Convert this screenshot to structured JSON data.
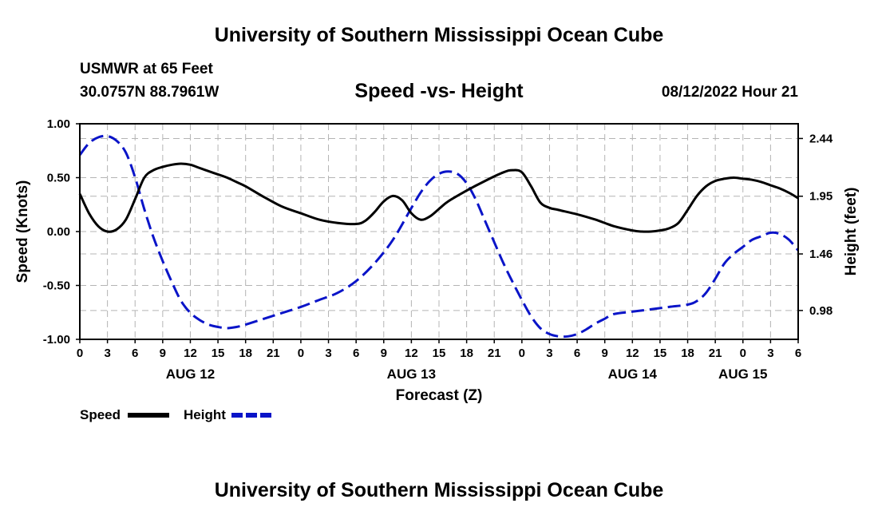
{
  "header": {
    "title": "University of Southern Mississippi Ocean Cube",
    "station_name": "USMWR at 65 Feet",
    "station_coords": "30.0757N  88.7961W",
    "subtitle": "Speed -vs- Height",
    "datetime": "08/12/2022 Hour 21"
  },
  "footer": {
    "title": "University of Southern Mississippi Ocean Cube"
  },
  "colors": {
    "speed": "#000000",
    "height": "#0a14c8",
    "grid": "#b4b4b4"
  },
  "chart_data": {
    "type": "line",
    "title": "Speed -vs- Height",
    "xlabel": "Forecast (Z)",
    "ylabel_left": "Speed (Knots)",
    "ylabel_right": "Height (feet)",
    "x_unit": "hours from AUG 12 00Z",
    "xlim": [
      0,
      78
    ],
    "ylim_left": [
      -1.0,
      1.0
    ],
    "ylim_right": [
      0.735,
      2.565
    ],
    "left_ticks": [
      "1.00",
      "0.50",
      "0.00",
      "-0.50",
      "-1.00"
    ],
    "right_ticks": [
      "2.44",
      "1.95",
      "1.46",
      "0.98"
    ],
    "x_ticks": [
      "0",
      "3",
      "6",
      "9",
      "12",
      "15",
      "18",
      "21",
      "0",
      "3",
      "6",
      "9",
      "12",
      "15",
      "18",
      "21",
      "0",
      "3",
      "6",
      "9",
      "12",
      "15",
      "18",
      "21",
      "0",
      "3",
      "6"
    ],
    "day_labels": [
      {
        "label": "AUG 12",
        "hour": 12
      },
      {
        "label": "AUG 13",
        "hour": 36
      },
      {
        "label": "AUG 14",
        "hour": 60
      },
      {
        "label": "AUG 15",
        "hour": 72
      }
    ],
    "legend": [
      "Speed",
      "Height"
    ],
    "series": [
      {
        "name": "Speed",
        "unit": "Knots",
        "x": [
          0,
          1,
          2,
          3,
          4,
          5,
          6,
          7,
          8,
          9,
          10,
          11,
          12,
          13,
          14,
          15,
          16,
          17,
          18,
          20,
          22,
          24,
          26,
          28,
          30,
          31,
          32,
          33,
          34,
          35,
          36,
          37,
          38,
          39,
          40,
          42,
          44,
          46,
          47,
          48,
          49,
          50,
          51,
          52,
          54,
          56,
          58,
          60,
          61,
          62,
          63,
          64,
          65,
          66,
          67,
          68,
          69,
          70,
          71,
          72,
          73,
          74,
          75,
          76,
          77,
          78
        ],
        "y": [
          0.35,
          0.17,
          0.05,
          0.0,
          0.02,
          0.11,
          0.3,
          0.5,
          0.57,
          0.6,
          0.62,
          0.63,
          0.62,
          0.59,
          0.56,
          0.53,
          0.5,
          0.46,
          0.42,
          0.32,
          0.23,
          0.17,
          0.11,
          0.08,
          0.07,
          0.1,
          0.18,
          0.28,
          0.33,
          0.29,
          0.17,
          0.11,
          0.14,
          0.21,
          0.28,
          0.38,
          0.47,
          0.55,
          0.57,
          0.55,
          0.42,
          0.27,
          0.22,
          0.2,
          0.16,
          0.11,
          0.05,
          0.01,
          0.0,
          0.0,
          0.01,
          0.03,
          0.08,
          0.2,
          0.33,
          0.42,
          0.47,
          0.49,
          0.5,
          0.49,
          0.48,
          0.46,
          0.43,
          0.4,
          0.36,
          0.31
        ]
      },
      {
        "name": "Height",
        "unit": "feet",
        "x": [
          0,
          1,
          2,
          3,
          4,
          5,
          6,
          7,
          8,
          9,
          10,
          11,
          12,
          13,
          14,
          15,
          16,
          17,
          18,
          20,
          22,
          24,
          26,
          28,
          30,
          32,
          34,
          36,
          37,
          38,
          39,
          40,
          41,
          42,
          43,
          44,
          45,
          46,
          47,
          48,
          49,
          50,
          51,
          52,
          53,
          54,
          55,
          56,
          57,
          58,
          60,
          62,
          64,
          66,
          67,
          68,
          69,
          70,
          71,
          72,
          73,
          74,
          75,
          76,
          77,
          78
        ],
        "y": [
          2.3,
          2.4,
          2.45,
          2.46,
          2.42,
          2.32,
          2.11,
          1.84,
          1.6,
          1.4,
          1.22,
          1.06,
          0.96,
          0.9,
          0.86,
          0.84,
          0.83,
          0.84,
          0.86,
          0.91,
          0.96,
          1.01,
          1.07,
          1.13,
          1.23,
          1.38,
          1.58,
          1.85,
          1.98,
          2.08,
          2.14,
          2.16,
          2.14,
          2.06,
          1.92,
          1.74,
          1.56,
          1.38,
          1.22,
          1.07,
          0.93,
          0.83,
          0.78,
          0.76,
          0.76,
          0.78,
          0.82,
          0.87,
          0.91,
          0.95,
          0.97,
          0.99,
          1.01,
          1.03,
          1.06,
          1.13,
          1.25,
          1.38,
          1.46,
          1.52,
          1.58,
          1.61,
          1.64,
          1.63,
          1.58,
          1.49
        ]
      }
    ]
  }
}
